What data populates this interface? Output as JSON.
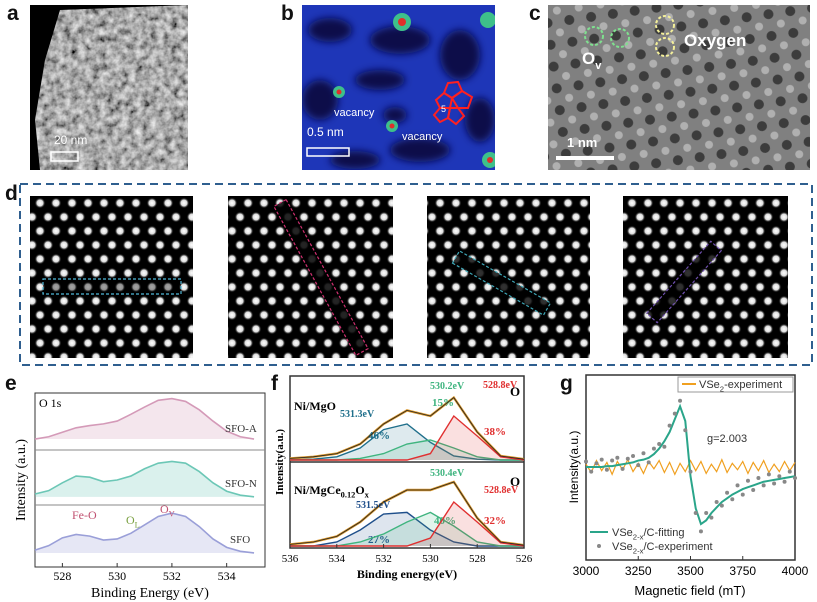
{
  "panels": {
    "a": {
      "label": "a",
      "scale_bar": "20 nm"
    },
    "b": {
      "label": "b",
      "annotations": [
        "vacancy",
        "vacancy",
        "5"
      ],
      "scale_bar": "0.5 nm"
    },
    "c": {
      "label": "c",
      "annotations": [
        [
          "O",
          "v"
        ],
        [
          "Oxygen"
        ]
      ],
      "scale_bar": "1 nm"
    },
    "d": {
      "label": "d"
    }
  },
  "chart_data": [
    {
      "label": "e",
      "type": "line",
      "title": "O 1s",
      "xlabel": "Binding Energy (eV)",
      "ylabel": "Intensity (a.u.)",
      "x": [
        527,
        527.5,
        528,
        528.5,
        529,
        529.5,
        530,
        530.5,
        531,
        531.5,
        532,
        532.5,
        533,
        533.5,
        534,
        534.5,
        535
      ],
      "xlim": [
        527,
        535.4
      ],
      "xticks": [
        528,
        530,
        532,
        534
      ],
      "ylim": [
        0,
        3.1
      ],
      "series": [
        {
          "name": "SFO-A",
          "color": "#d49ab8",
          "values": [
            2.28,
            2.32,
            2.4,
            2.48,
            2.52,
            2.55,
            2.6,
            2.72,
            2.85,
            2.97,
            3.0,
            2.95,
            2.8,
            2.6,
            2.42,
            2.32,
            2.28
          ]
        },
        {
          "name": "SFO-N",
          "color": "#6cc7b6",
          "values": [
            1.3,
            1.36,
            1.5,
            1.62,
            1.6,
            1.52,
            1.55,
            1.62,
            1.75,
            1.85,
            1.88,
            1.85,
            1.7,
            1.5,
            1.35,
            1.28,
            1.25
          ]
        },
        {
          "name": "SFO",
          "color": "#9a9fd8",
          "values": [
            0.3,
            0.38,
            0.52,
            0.58,
            0.55,
            0.48,
            0.5,
            0.6,
            0.75,
            0.9,
            0.96,
            0.9,
            0.72,
            0.5,
            0.35,
            0.28,
            0.25
          ]
        }
      ],
      "annotations": [
        [
          "Fe-O"
        ],
        [
          "O",
          "L"
        ],
        [
          "O",
          "V"
        ]
      ]
    },
    {
      "label": "f",
      "type": "line",
      "xlabel": "Binding energy(eV)",
      "ylabel": "Intensity(a.u.)",
      "x": [
        536,
        535,
        534,
        533,
        532,
        531,
        530,
        529,
        528,
        527,
        526
      ],
      "xlim": [
        536,
        526
      ],
      "xticks": [
        536,
        534,
        532,
        530,
        528,
        526
      ],
      "ylim": [
        0,
        1
      ],
      "subplots": [
        {
          "title_parts": [
            "Ni/MgO"
          ],
          "element": "O",
          "series": [
            {
              "color": "#d9962a",
              "values": [
                0.02,
                0.04,
                0.08,
                0.2,
                0.45,
                0.62,
                0.55,
                0.78,
                0.35,
                0.05,
                0.01
              ]
            },
            {
              "name": "531.3eV",
              "label": "46%",
              "color": "#1f6f8b",
              "values": [
                0,
                0.01,
                0.04,
                0.15,
                0.38,
                0.45,
                0.22,
                0.05,
                0.01,
                0,
                0
              ]
            },
            {
              "name": "530.2eV",
              "label": "15%",
              "color": "#3fb47f",
              "values": [
                0,
                0,
                0,
                0.02,
                0.08,
                0.2,
                0.25,
                0.15,
                0.04,
                0,
                0
              ]
            },
            {
              "name": "528.8eV",
              "label": "38%",
              "color": "#e03030",
              "values": [
                0,
                0,
                0,
                0,
                0,
                0,
                0.08,
                0.55,
                0.3,
                0.04,
                0
              ]
            }
          ]
        },
        {
          "title_parts": [
            "Ni/MgCe",
            "0.12",
            "O",
            "x"
          ],
          "element": "O",
          "series": [
            {
              "color": "#d9962a",
              "values": [
                0.02,
                0.05,
                0.12,
                0.3,
                0.55,
                0.7,
                0.7,
                0.8,
                0.35,
                0.05,
                0.01
              ]
            },
            {
              "name": "531.5eV",
              "label": "27%",
              "color": "#1f4f8b",
              "values": [
                0,
                0,
                0.05,
                0.2,
                0.4,
                0.42,
                0.2,
                0.05,
                0,
                0,
                0
              ]
            },
            {
              "name": "530.4eV",
              "label": "40%",
              "color": "#3fb47f",
              "values": [
                0,
                0,
                0,
                0.05,
                0.15,
                0.3,
                0.42,
                0.25,
                0.05,
                0,
                0
              ]
            },
            {
              "name": "528.8eV",
              "label": "32%",
              "color": "#e03030",
              "values": [
                0,
                0,
                0,
                0,
                0,
                0,
                0.1,
                0.55,
                0.3,
                0.04,
                0
              ]
            }
          ]
        }
      ]
    },
    {
      "label": "g",
      "type": "line",
      "xlabel": "Magnetic field (mT)",
      "ylabel": "Intensity(a.u.)",
      "annotation": "g=2.003",
      "x": [
        3000,
        3025,
        3050,
        3075,
        3100,
        3125,
        3150,
        3175,
        3200,
        3225,
        3250,
        3275,
        3300,
        3325,
        3350,
        3375,
        3400,
        3425,
        3450,
        3475,
        3500,
        3525,
        3550,
        3575,
        3600,
        3625,
        3650,
        3675,
        3700,
        3725,
        3750,
        3775,
        3800,
        3825,
        3850,
        3875,
        3900,
        3925,
        3950,
        3975,
        4000
      ],
      "xlim": [
        3000,
        4000
      ],
      "xticks": [
        3000,
        3250,
        3500,
        3750,
        4000
      ],
      "ylim": [
        -1,
        1
      ],
      "series": [
        {
          "name_parts": [
            "VSe",
            "2",
            "-experiment"
          ],
          "style": "line",
          "color": "#f0a020",
          "values": [
            0.03,
            -0.06,
            0.07,
            -0.04,
            0.05,
            -0.08,
            0.06,
            -0.03,
            0.08,
            -0.05,
            0.04,
            -0.07,
            0.06,
            -0.02,
            0.07,
            -0.06,
            0.05,
            -0.08,
            0.04,
            -0.05,
            0.07,
            -0.04,
            0.06,
            -0.07,
            0.03,
            -0.05,
            0.08,
            -0.06,
            0.04,
            -0.03,
            0.06,
            -0.07,
            0.05,
            -0.04,
            0.07,
            -0.06,
            0.03,
            -0.05,
            0.06,
            -0.04,
            0.05
          ]
        },
        {
          "name_parts": [
            "VSe",
            "2-x",
            "/C-fitting"
          ],
          "style": "line",
          "color": "#2aa58a",
          "values": [
            0,
            0,
            0,
            0,
            0.01,
            0.01,
            0.02,
            0.03,
            0.04,
            0.05,
            0.07,
            0.08,
            0.1,
            0.14,
            0.2,
            0.28,
            0.38,
            0.52,
            0.66,
            0.5,
            -0.1,
            -0.45,
            -0.62,
            -0.58,
            -0.5,
            -0.44,
            -0.38,
            -0.34,
            -0.3,
            -0.27,
            -0.24,
            -0.22,
            -0.2,
            -0.18,
            -0.16,
            -0.15,
            -0.14,
            -0.13,
            -0.12,
            -0.11,
            -0.1
          ]
        },
        {
          "name_parts": [
            "VSe",
            "2-x",
            "/C-experiment"
          ],
          "style": "scatter",
          "color": "#888888",
          "values": [
            0.06,
            -0.05,
            0.04,
            0.08,
            -0.03,
            0.07,
            0.1,
            -0.02,
            0.09,
            0.12,
            0.02,
            0.15,
            0.05,
            0.2,
            0.25,
            0.22,
            0.45,
            0.58,
            0.72,
            0.4,
            -0.05,
            -0.5,
            -0.7,
            -0.5,
            -0.55,
            -0.38,
            -0.42,
            -0.28,
            -0.35,
            -0.2,
            -0.3,
            -0.15,
            -0.25,
            -0.12,
            -0.2,
            -0.08,
            -0.18,
            -0.1,
            -0.16,
            -0.05,
            -0.12
          ]
        }
      ]
    }
  ]
}
